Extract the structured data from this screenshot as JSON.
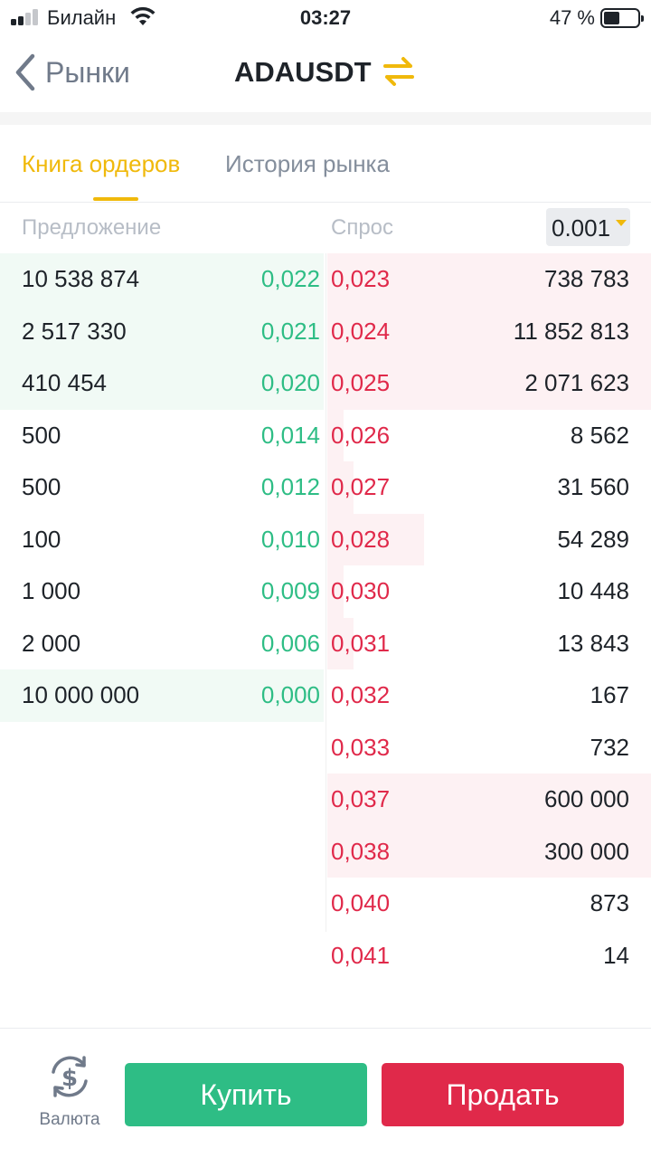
{
  "status_bar": {
    "carrier": "Билайн",
    "time": "03:27",
    "battery_percent": "47 %",
    "battery_level": 0.47
  },
  "nav": {
    "back_label": "Рынки",
    "pair": "ADAUSDT"
  },
  "tabs": [
    {
      "label": "Книга ордеров",
      "active": true
    },
    {
      "label": "История рынка",
      "active": false
    }
  ],
  "book_header": {
    "bid_label": "Предложение",
    "ask_label": "Спрос",
    "precision": "0.001"
  },
  "colors": {
    "accent": "#f0b90b",
    "bid": "#2ebd85",
    "ask": "#e0294a"
  },
  "bids": [
    {
      "qty": "10 538 874",
      "price": "0,022",
      "depth": 1.0
    },
    {
      "qty": "2 517 330",
      "price": "0,021",
      "depth": 1.0
    },
    {
      "qty": "410 454",
      "price": "0,020",
      "depth": 1.0
    },
    {
      "qty": "500",
      "price": "0,014",
      "depth": 0
    },
    {
      "qty": "500",
      "price": "0,012",
      "depth": 0
    },
    {
      "qty": "100",
      "price": "0,010",
      "depth": 0
    },
    {
      "qty": "1 000",
      "price": "0,009",
      "depth": 0
    },
    {
      "qty": "2 000",
      "price": "0,006",
      "depth": 0
    },
    {
      "qty": "10 000 000",
      "price": "0,000",
      "depth": 1.0
    }
  ],
  "asks": [
    {
      "price": "0,023",
      "qty": "738 783",
      "depth": 1.0
    },
    {
      "price": "0,024",
      "qty": "11 852 813",
      "depth": 1.0
    },
    {
      "price": "0,025",
      "qty": "2 071 623",
      "depth": 1.0
    },
    {
      "price": "0,026",
      "qty": "8 562",
      "depth": 0.05
    },
    {
      "price": "0,027",
      "qty": "31 560",
      "depth": 0.08
    },
    {
      "price": "0,028",
      "qty": "54 289",
      "depth": 0.3
    },
    {
      "price": "0,030",
      "qty": "10 448",
      "depth": 0.05
    },
    {
      "price": "0,031",
      "qty": "13 843",
      "depth": 0.08
    },
    {
      "price": "0,032",
      "qty": "167",
      "depth": 0
    },
    {
      "price": "0,033",
      "qty": "732",
      "depth": 0
    },
    {
      "price": "0,037",
      "qty": "600 000",
      "depth": 1.0
    },
    {
      "price": "0,038",
      "qty": "300 000",
      "depth": 1.0
    },
    {
      "price": "0,040",
      "qty": "873",
      "depth": 0
    },
    {
      "price": "0,041",
      "qty": "14",
      "depth": 0
    }
  ],
  "bottom_bar": {
    "currency_label": "Валюта",
    "buy_label": "Купить",
    "sell_label": "Продать"
  }
}
